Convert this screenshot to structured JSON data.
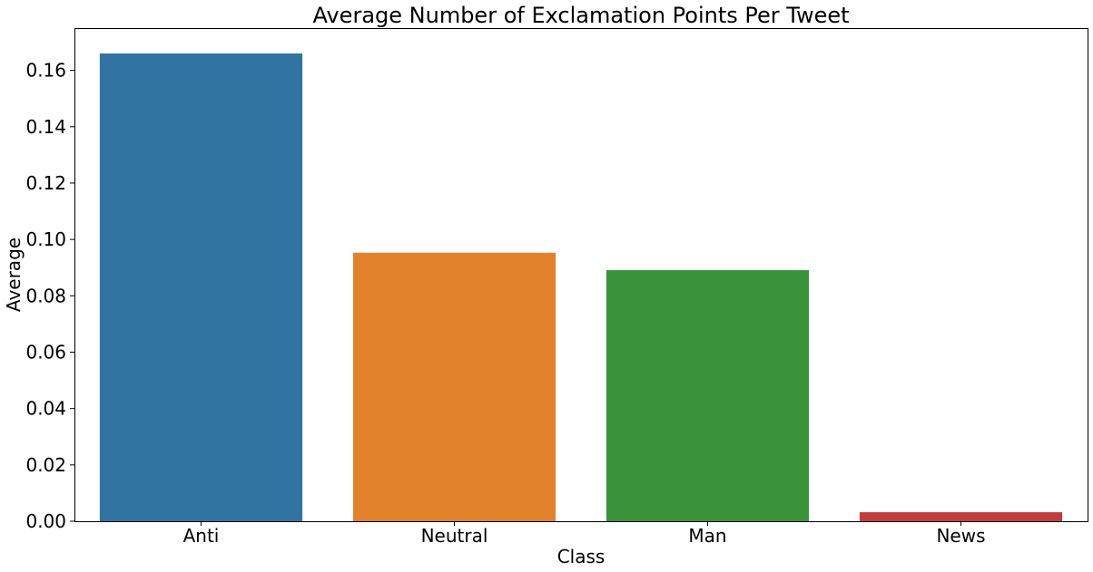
{
  "chart_data": {
    "type": "bar",
    "title": "Average Number of Exclamation Points Per Tweet",
    "xlabel": "Class",
    "ylabel": "Average",
    "categories": [
      "Anti",
      "Neutral",
      "Man",
      "News"
    ],
    "values": [
      0.166,
      0.0953,
      0.0891,
      0.0032
    ],
    "colors": [
      "#3274a1",
      "#e1812c",
      "#3a923a",
      "#c03d3e"
    ],
    "ylim": [
      0,
      0.175
    ],
    "yticks": [
      0.0,
      0.02,
      0.04,
      0.06,
      0.08,
      0.1,
      0.12,
      0.14,
      0.16
    ],
    "ytick_labels": [
      "0.00",
      "0.02",
      "0.04",
      "0.06",
      "0.08",
      "0.10",
      "0.12",
      "0.14",
      "0.16"
    ],
    "grid": false,
    "legend": false
  }
}
